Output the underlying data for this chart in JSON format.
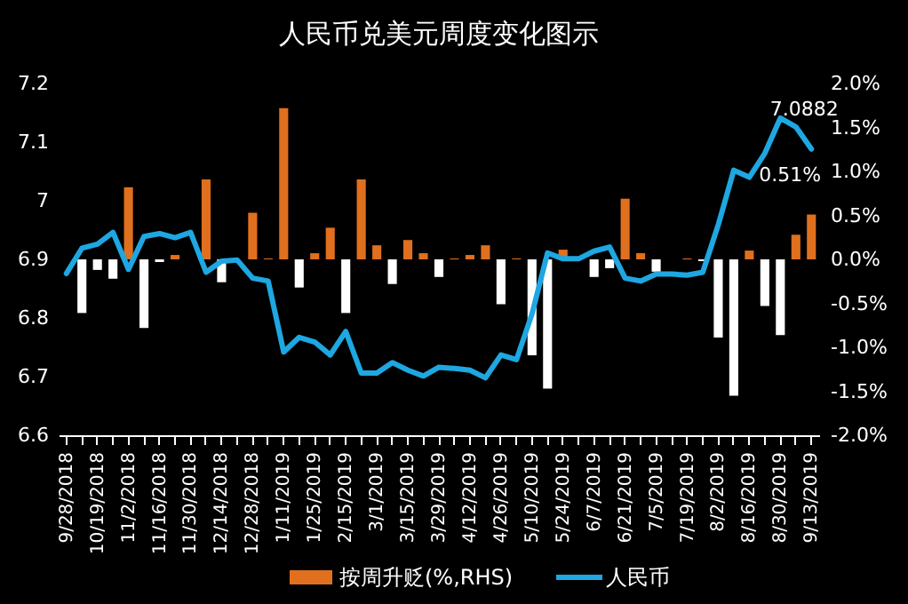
{
  "chart_data": {
    "type": "bar",
    "title": "人民币兑美元周度变化图示",
    "categories": [
      "9/28/2018",
      null,
      "10/19/2018",
      null,
      "11/2/2018",
      null,
      "11/16/2018",
      null,
      "11/30/2018",
      null,
      "12/14/2018",
      null,
      "12/28/2018",
      null,
      "1/11/2019",
      null,
      "1/25/2019",
      null,
      "2/15/2019",
      null,
      "3/1/2019",
      null,
      "3/15/2019",
      null,
      "3/29/2019",
      null,
      "4/12/2019",
      null,
      "4/26/2019",
      null,
      "5/10/2019",
      null,
      "5/24/2019",
      null,
      "6/7/2019",
      null,
      "6/21/2019",
      null,
      "7/5/2019",
      null,
      "7/19/2019",
      null,
      "8/2/2019",
      null,
      "8/16/2019",
      null,
      "8/30/2019",
      null,
      "9/13/2019"
    ],
    "series": [
      {
        "name": "按周升贬(%,RHS)",
        "axis": "y2",
        "color": "#e0701e",
        "colors": [
          "#ffffff",
          "#ffffff",
          "#ffffff",
          "#ffffff",
          "#e0701e",
          "#ffffff",
          "#ffffff",
          "#e0701e",
          "#e0701e",
          "#e0701e",
          "#ffffff",
          "#ffffff",
          "#e0701e",
          "#e0701e",
          "#e0701e",
          "#ffffff",
          "#e0701e",
          "#e0701e",
          "#ffffff",
          "#e0701e",
          "#e0701e",
          "#ffffff",
          "#e0701e",
          "#e0701e",
          "#ffffff",
          "#e0701e",
          "#e0701e",
          "#e0701e",
          "#ffffff",
          "#e0701e",
          "#ffffff",
          "#ffffff",
          "#e0701e",
          "#e0701e",
          "#ffffff",
          "#ffffff",
          "#e0701e",
          "#e0701e",
          "#ffffff",
          "#e0701e",
          "#e0701e",
          "#ffffff",
          "#ffffff",
          "#ffffff",
          "#e0701e",
          "#ffffff",
          "#ffffff",
          "#e0701e",
          "#e0701e"
        ],
        "values": [
          0,
          -0.61,
          -0.12,
          -0.22,
          0.82,
          -0.78,
          -0.03,
          0.05,
          0,
          0.91,
          -0.26,
          null,
          0.53,
          0.01,
          1.72,
          -0.32,
          0.07,
          0.36,
          -0.61,
          0.91,
          0.16,
          -0.28,
          0.22,
          0.07,
          -0.2,
          0.01,
          0.05,
          0.16,
          -0.51,
          0.01,
          -1.09,
          -1.47,
          0.11,
          0,
          -0.2,
          -0.1,
          0.69,
          0.07,
          -0.14,
          0,
          0.01,
          -0.02,
          -0.89,
          -1.55,
          0.1,
          -0.53,
          -0.86,
          0.28,
          0.51
        ],
        "value_labels": [
          null,
          null,
          null,
          null,
          null,
          null,
          null,
          null,
          null,
          null,
          null,
          null,
          null,
          null,
          null,
          null,
          null,
          null,
          null,
          null,
          null,
          null,
          null,
          null,
          null,
          null,
          null,
          null,
          null,
          null,
          null,
          null,
          null,
          null,
          null,
          null,
          null,
          null,
          null,
          null,
          null,
          null,
          null,
          null,
          null,
          null,
          null,
          null,
          "0.51%"
        ]
      },
      {
        "name": "人民币",
        "type": "line",
        "color": "#1ea7e1",
        "values": [
          6.876,
          6.919,
          6.926,
          6.946,
          6.883,
          6.939,
          6.944,
          6.937,
          6.946,
          6.878,
          6.897,
          6.899,
          6.868,
          6.863,
          6.742,
          6.767,
          6.759,
          6.737,
          6.777,
          6.706,
          6.706,
          6.724,
          6.711,
          6.701,
          6.716,
          6.714,
          6.711,
          6.698,
          6.737,
          6.729,
          6.807,
          6.911,
          6.901,
          6.901,
          6.914,
          6.921,
          6.868,
          6.863,
          6.875,
          6.875,
          6.873,
          6.878,
          6.959,
          7.052,
          7.04,
          7.081,
          7.141,
          7.126,
          7.0882
        ],
        "value_labels": [
          null,
          null,
          null,
          null,
          null,
          null,
          null,
          null,
          null,
          null,
          null,
          null,
          null,
          null,
          null,
          null,
          null,
          null,
          null,
          null,
          null,
          null,
          null,
          null,
          null,
          null,
          null,
          null,
          null,
          null,
          null,
          null,
          null,
          null,
          null,
          null,
          null,
          null,
          null,
          null,
          null,
          null,
          null,
          null,
          null,
          null,
          null,
          null,
          "7.0882"
        ]
      }
    ],
    "ylim": [
      6.6,
      7.2
    ],
    "yticks": [
      6.6,
      6.7,
      6.8,
      6.9,
      7,
      7.1,
      7.2
    ],
    "y2lim": [
      -2,
      2
    ],
    "y2ticks": [
      {
        "value": -2,
        "label": "-2.0%"
      },
      {
        "value": -1.5,
        "label": "-1.5%"
      },
      {
        "value": -1,
        "label": "-1.0%"
      },
      {
        "value": -0.5,
        "label": "-0.5%"
      },
      {
        "value": 0,
        "label": "0.0%"
      },
      {
        "value": 0.5,
        "label": "0.5%"
      },
      {
        "value": 1,
        "label": "1.0%"
      },
      {
        "value": 1.5,
        "label": "1.5%"
      },
      {
        "value": 2,
        "label": "2.0%"
      }
    ],
    "legend": "bottom"
  }
}
